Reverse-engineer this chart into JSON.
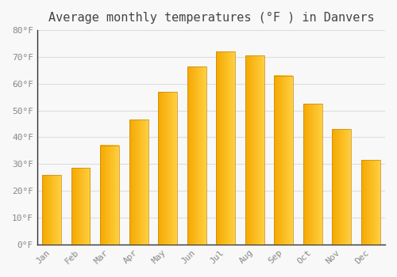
{
  "title": "Average monthly temperatures (°F ) in Danvers",
  "months": [
    "Jan",
    "Feb",
    "Mar",
    "Apr",
    "May",
    "Jun",
    "Jul",
    "Aug",
    "Sep",
    "Oct",
    "Nov",
    "Dec"
  ],
  "values": [
    26,
    28.5,
    37,
    46.5,
    57,
    66.5,
    72,
    70.5,
    63,
    52.5,
    43,
    31.5
  ],
  "ylim": [
    0,
    80
  ],
  "ytick_step": 10,
  "bar_color_left": "#F5A800",
  "bar_color_right": "#FFD040",
  "background_color": "#F8F8F8",
  "grid_color": "#DDDDDD",
  "title_fontsize": 11,
  "tick_fontsize": 8,
  "tick_label_color": "#888888",
  "font_family": "monospace"
}
